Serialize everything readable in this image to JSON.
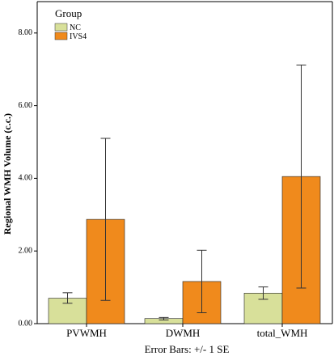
{
  "chart_data": {
    "type": "bar",
    "categories": [
      "PVWMH",
      "DWMH",
      "total_WMH"
    ],
    "series": [
      {
        "name": "NC",
        "color": "#d8e09a",
        "values": [
          0.7,
          0.14,
          0.84
        ],
        "error_low": [
          0.56,
          0.1,
          0.67
        ],
        "error_high": [
          0.85,
          0.17,
          1.01
        ]
      },
      {
        "name": "IVS4",
        "color": "#f08a1c",
        "values": [
          2.87,
          1.16,
          4.05
        ],
        "error_low": [
          0.64,
          0.3,
          0.98
        ],
        "error_high": [
          5.1,
          2.02,
          7.12
        ]
      }
    ],
    "xlabel": "",
    "ylabel": "Regional WMH Volume (c.c.)",
    "ylim": [
      0,
      8.8
    ],
    "yticks": [
      0,
      2,
      4,
      6,
      8
    ],
    "ytick_labels": [
      "0.00",
      "2.00",
      "4.00",
      "6.00",
      "8.00"
    ],
    "legend": {
      "title": "Group",
      "position": "top-left"
    },
    "caption": "Error Bars: +/- 1 SE",
    "grid": false
  }
}
